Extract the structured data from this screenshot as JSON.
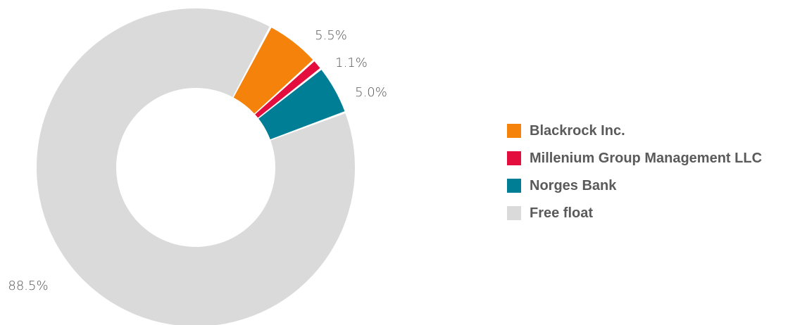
{
  "chart_data": {
    "type": "pie",
    "variant": "donut",
    "unit": "%",
    "slices": [
      {
        "label": "Blackrock Inc.",
        "value": 5.5,
        "value_label": "5.5%",
        "color": "#F5820B"
      },
      {
        "label": "Millenium Group Management LLC",
        "value": 1.1,
        "value_label": "1.1%",
        "color": "#E30D3E"
      },
      {
        "label": "Norges Bank",
        "value": 5.0,
        "value_label": "5.0%",
        "color": "#007E96"
      },
      {
        "label": "Free float",
        "value": 88.5,
        "value_label": "88.5%",
        "color": "#DADADA"
      }
    ],
    "legend_position": "right",
    "title": "",
    "background": "#FFFFFF"
  }
}
